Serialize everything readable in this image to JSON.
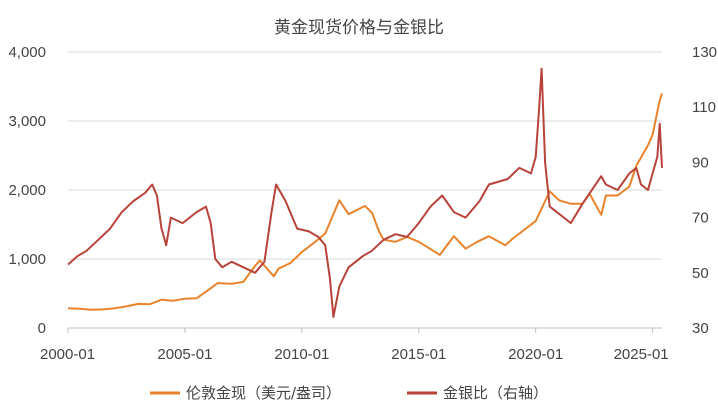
{
  "chart_data": {
    "type": "line",
    "title": "黄金现货价格与金银比",
    "x_ticks": [
      "2000-01",
      "2005-01",
      "2010-01",
      "2015-01",
      "2020-01",
      "2025-01"
    ],
    "y_left": {
      "ticks": [
        "0",
        "1,000",
        "2,000",
        "3,000",
        "4,000"
      ],
      "ylim": [
        0,
        4000
      ]
    },
    "y_right": {
      "ticks": [
        "30",
        "50",
        "70",
        "90",
        "110",
        "130"
      ],
      "ylim": [
        30,
        130
      ]
    },
    "grid": "horizontal",
    "legend_position": "bottom",
    "series": [
      {
        "name": "伦敦金现（美元/盎司）",
        "axis": "left",
        "color": "#E9832B",
        "x": [
          2000.0,
          2000.5,
          2001.0,
          2001.5,
          2002.0,
          2002.5,
          2003.0,
          2003.5,
          2004.0,
          2004.5,
          2005.0,
          2005.5,
          2006.0,
          2006.4,
          2007.0,
          2007.5,
          2008.0,
          2008.2,
          2008.8,
          2009.0,
          2009.5,
          2010.0,
          2010.5,
          2011.0,
          2011.6,
          2012.0,
          2012.7,
          2013.0,
          2013.3,
          2013.5,
          2014.0,
          2014.5,
          2015.0,
          2015.9,
          2016.5,
          2017.0,
          2017.5,
          2018.0,
          2018.7,
          2019.0,
          2019.5,
          2020.0,
          2020.6,
          2021.0,
          2021.5,
          2022.0,
          2022.3,
          2022.8,
          2023.0,
          2023.5,
          2024.0,
          2024.3,
          2024.8,
          2025.0,
          2025.3,
          2025.4
        ],
        "values": [
          285,
          280,
          265,
          270,
          285,
          315,
          350,
          345,
          410,
          395,
          425,
          430,
          550,
          650,
          640,
          670,
          900,
          980,
          750,
          860,
          940,
          1100,
          1230,
          1370,
          1850,
          1650,
          1770,
          1670,
          1400,
          1280,
          1250,
          1320,
          1250,
          1060,
          1330,
          1150,
          1250,
          1330,
          1200,
          1290,
          1420,
          1550,
          1980,
          1850,
          1800,
          1800,
          1950,
          1640,
          1920,
          1920,
          2050,
          2350,
          2650,
          2800,
          3300,
          3400
        ]
      },
      {
        "name": "金银比（右轴）",
        "axis": "right",
        "color": "#B8433A",
        "x": [
          2000.0,
          2000.4,
          2000.8,
          2001.3,
          2001.8,
          2002.3,
          2002.8,
          2003.3,
          2003.6,
          2003.8,
          2004.0,
          2004.2,
          2004.4,
          2004.9,
          2005.5,
          2005.9,
          2006.1,
          2006.3,
          2006.6,
          2007.0,
          2007.5,
          2008.0,
          2008.4,
          2008.7,
          2008.9,
          2009.3,
          2009.8,
          2010.3,
          2010.7,
          2011.0,
          2011.2,
          2011.35,
          2011.6,
          2012.0,
          2012.6,
          2013.0,
          2013.5,
          2014.0,
          2014.5,
          2015.0,
          2015.5,
          2016.0,
          2016.5,
          2017.0,
          2017.6,
          2018.0,
          2018.8,
          2019.3,
          2019.8,
          2020.0,
          2020.15,
          2020.25,
          2020.4,
          2020.6,
          2020.9,
          2021.5,
          2022.0,
          2022.8,
          2023.0,
          2023.5,
          2024.0,
          2024.3,
          2024.5,
          2024.8,
          2025.0,
          2025.2,
          2025.3,
          2025.4
        ],
        "values": [
          53,
          56,
          58,
          62,
          66,
          72,
          76,
          79,
          82,
          78,
          66,
          60,
          70,
          68,
          72,
          74,
          68,
          55,
          52,
          54,
          52,
          50,
          54,
          72,
          82,
          76,
          66,
          65,
          63,
          60,
          48,
          34,
          45,
          52,
          56,
          58,
          62,
          64,
          63,
          68,
          74,
          78,
          72,
          70,
          76,
          82,
          84,
          88,
          86,
          92,
          110,
          124,
          90,
          74,
          72,
          68,
          75,
          85,
          82,
          80,
          86,
          88,
          82,
          80,
          86,
          92,
          104,
          88
        ]
      }
    ]
  }
}
